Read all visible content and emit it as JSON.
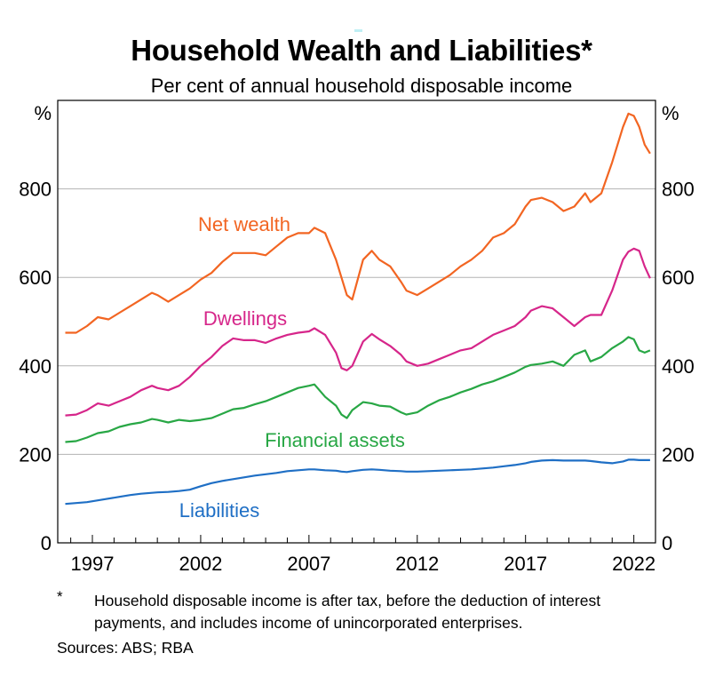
{
  "title": "Household Wealth and Liabilities*",
  "subtitle": "Per cent of annual household disposable income",
  "footnote_marker": "*",
  "footnote": "Household disposable income is after tax, before the deduction of interest payments, and includes income of unincorporated enterprises.",
  "sources": "Sources: ABS; RBA",
  "chart_data": {
    "type": "line",
    "unit_left": "%",
    "unit_right": "%",
    "ylim": [
      0,
      1000
    ],
    "yticks": [
      0,
      200,
      400,
      600,
      800
    ],
    "ytick_labels": [
      "0",
      "200",
      "400",
      "600",
      "800"
    ],
    "xlim": [
      1995.4,
      2023.0
    ],
    "xticks": [
      1997,
      2002,
      2007,
      2012,
      2017,
      2022
    ],
    "xtick_labels": [
      "1997",
      "2002",
      "2007",
      "2012",
      "2017",
      "2022"
    ],
    "grid": true,
    "legend": "inline labels",
    "colors": {
      "Net wealth": "#f26522",
      "Dwellings": "#d6268a",
      "Financial assets": "#28a745",
      "Liabilities": "#1f6fc5"
    },
    "series": [
      {
        "name": "Net wealth",
        "x": [
          1995.75,
          1996.25,
          1996.75,
          1997.25,
          1997.75,
          1998.25,
          1998.75,
          1999.25,
          1999.75,
          2000.0,
          2000.5,
          2001.0,
          2001.5,
          2002.0,
          2002.5,
          2003.0,
          2003.5,
          2004.0,
          2004.5,
          2005.0,
          2005.5,
          2006.0,
          2006.5,
          2007.0,
          2007.25,
          2007.75,
          2008.25,
          2008.5,
          2008.75,
          2009.0,
          2009.5,
          2009.9,
          2010.25,
          2010.75,
          2011.25,
          2011.5,
          2012.0,
          2012.5,
          2013.0,
          2013.5,
          2014.0,
          2014.5,
          2015.0,
          2015.5,
          2016.0,
          2016.5,
          2017.0,
          2017.25,
          2017.75,
          2018.25,
          2018.75,
          2019.25,
          2019.75,
          2020.0,
          2020.5,
          2021.0,
          2021.5,
          2021.75,
          2022.0,
          2022.25,
          2022.5,
          2022.75
        ],
        "values": [
          475,
          475,
          490,
          510,
          505,
          520,
          535,
          550,
          565,
          560,
          545,
          560,
          575,
          595,
          610,
          635,
          655,
          655,
          655,
          650,
          670,
          690,
          700,
          700,
          712,
          700,
          640,
          600,
          560,
          550,
          640,
          660,
          640,
          625,
          590,
          570,
          560,
          575,
          590,
          605,
          625,
          640,
          660,
          690,
          700,
          720,
          760,
          775,
          780,
          770,
          750,
          760,
          790,
          770,
          790,
          860,
          940,
          970,
          965,
          940,
          900,
          880
        ]
      },
      {
        "name": "Dwellings",
        "x": [
          1995.75,
          1996.25,
          1996.75,
          1997.25,
          1997.75,
          1998.25,
          1998.75,
          1999.25,
          1999.75,
          2000.0,
          2000.5,
          2001.0,
          2001.5,
          2002.0,
          2002.5,
          2003.0,
          2003.5,
          2004.0,
          2004.5,
          2005.0,
          2005.5,
          2006.0,
          2006.5,
          2007.0,
          2007.25,
          2007.75,
          2008.25,
          2008.5,
          2008.75,
          2009.0,
          2009.5,
          2009.9,
          2010.25,
          2010.75,
          2011.25,
          2011.5,
          2012.0,
          2012.5,
          2013.0,
          2013.5,
          2014.0,
          2014.5,
          2015.0,
          2015.5,
          2016.0,
          2016.5,
          2017.0,
          2017.25,
          2017.75,
          2018.25,
          2018.75,
          2019.25,
          2019.75,
          2020.0,
          2020.5,
          2021.0,
          2021.5,
          2021.75,
          2022.0,
          2022.25,
          2022.5,
          2022.75
        ],
        "values": [
          288,
          290,
          300,
          315,
          310,
          320,
          330,
          345,
          355,
          350,
          345,
          355,
          375,
          400,
          420,
          445,
          462,
          458,
          458,
          452,
          462,
          470,
          475,
          478,
          485,
          470,
          430,
          395,
          390,
          400,
          455,
          472,
          460,
          445,
          425,
          410,
          400,
          405,
          415,
          425,
          435,
          440,
          455,
          470,
          480,
          490,
          510,
          525,
          535,
          530,
          510,
          490,
          510,
          515,
          515,
          570,
          640,
          658,
          665,
          660,
          625,
          598
        ]
      },
      {
        "name": "Financial assets",
        "x": [
          1995.75,
          1996.25,
          1996.75,
          1997.25,
          1997.75,
          1998.25,
          1998.75,
          1999.25,
          1999.75,
          2000.0,
          2000.5,
          2001.0,
          2001.5,
          2002.0,
          2002.5,
          2003.0,
          2003.5,
          2004.0,
          2004.5,
          2005.0,
          2005.5,
          2006.0,
          2006.5,
          2007.0,
          2007.25,
          2007.75,
          2008.25,
          2008.5,
          2008.75,
          2009.0,
          2009.5,
          2009.9,
          2010.25,
          2010.75,
          2011.25,
          2011.5,
          2012.0,
          2012.5,
          2013.0,
          2013.5,
          2014.0,
          2014.5,
          2015.0,
          2015.5,
          2016.0,
          2016.5,
          2017.0,
          2017.25,
          2017.75,
          2018.25,
          2018.75,
          2019.25,
          2019.75,
          2020.0,
          2020.5,
          2021.0,
          2021.5,
          2021.75,
          2022.0,
          2022.25,
          2022.5,
          2022.75
        ],
        "values": [
          228,
          230,
          238,
          248,
          252,
          262,
          268,
          272,
          280,
          278,
          272,
          278,
          275,
          278,
          282,
          292,
          302,
          305,
          313,
          320,
          330,
          340,
          350,
          355,
          358,
          330,
          310,
          290,
          282,
          300,
          318,
          315,
          310,
          308,
          295,
          290,
          295,
          310,
          322,
          330,
          340,
          348,
          358,
          365,
          375,
          385,
          398,
          402,
          405,
          410,
          400,
          425,
          435,
          410,
          420,
          440,
          455,
          465,
          460,
          435,
          430,
          435
        ]
      },
      {
        "name": "Liabilities",
        "x": [
          1995.75,
          1996.25,
          1996.75,
          1997.25,
          1997.75,
          1998.25,
          1998.75,
          1999.25,
          1999.75,
          2000.0,
          2000.5,
          2001.0,
          2001.5,
          2002.0,
          2002.5,
          2003.0,
          2003.5,
          2004.0,
          2004.5,
          2005.0,
          2005.5,
          2006.0,
          2006.5,
          2007.0,
          2007.25,
          2007.75,
          2008.25,
          2008.5,
          2008.75,
          2009.0,
          2009.5,
          2009.9,
          2010.25,
          2010.75,
          2011.25,
          2011.5,
          2012.0,
          2012.5,
          2013.0,
          2013.5,
          2014.0,
          2014.5,
          2015.0,
          2015.5,
          2016.0,
          2016.5,
          2017.0,
          2017.25,
          2017.75,
          2018.25,
          2018.75,
          2019.25,
          2019.75,
          2020.0,
          2020.5,
          2021.0,
          2021.5,
          2021.75,
          2022.0,
          2022.25,
          2022.5,
          2022.75
        ],
        "values": [
          88,
          90,
          92,
          96,
          100,
          104,
          108,
          111,
          113,
          114,
          115,
          117,
          120,
          128,
          135,
          140,
          144,
          148,
          152,
          155,
          158,
          162,
          164,
          166,
          166,
          164,
          163,
          161,
          160,
          162,
          165,
          166,
          165,
          163,
          162,
          161,
          161,
          162,
          163,
          164,
          165,
          166,
          168,
          170,
          173,
          176,
          180,
          183,
          186,
          187,
          186,
          186,
          186,
          185,
          182,
          180,
          184,
          188,
          188,
          187,
          187,
          187
        ]
      }
    ],
    "annotations": [
      {
        "series": "Net wealth",
        "text": "Net wealth"
      },
      {
        "series": "Dwellings",
        "text": "Dwellings"
      },
      {
        "series": "Financial assets",
        "text": "Financial assets"
      },
      {
        "series": "Liabilities",
        "text": "Liabilities"
      }
    ]
  }
}
